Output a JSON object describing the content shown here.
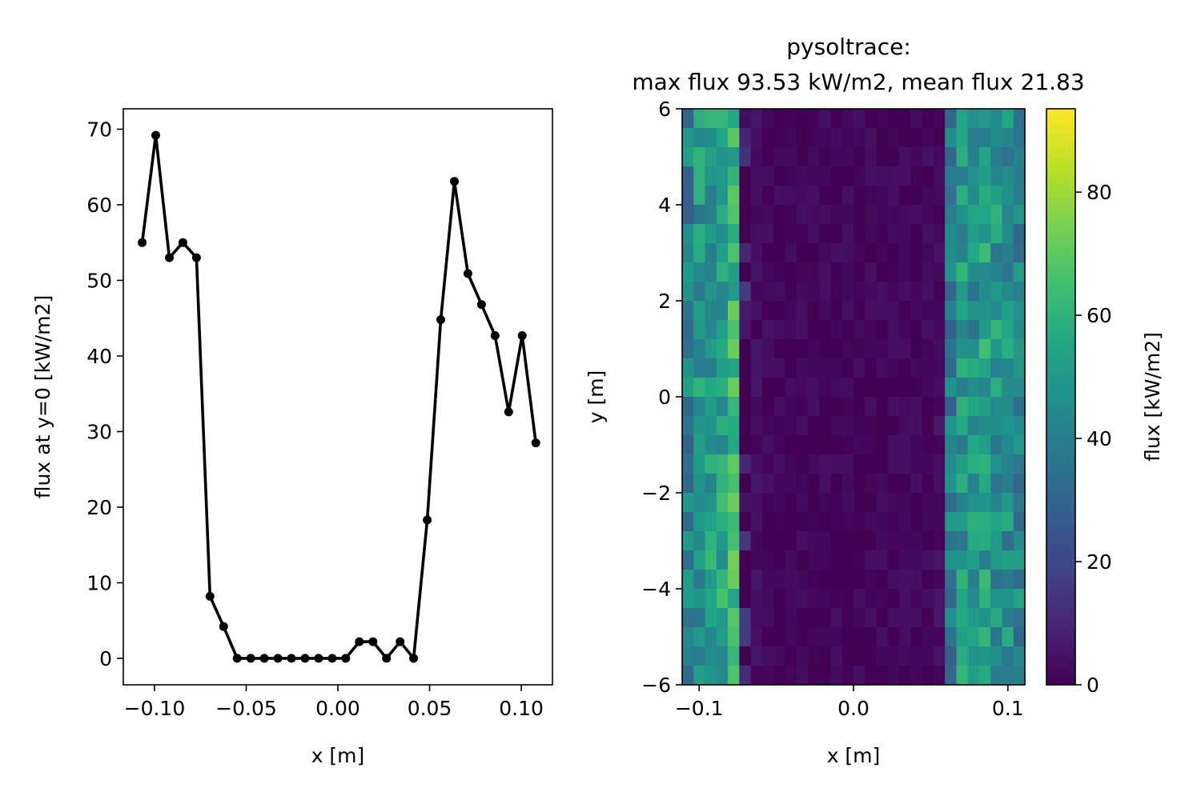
{
  "chart_data": [
    {
      "type": "line",
      "title": "",
      "xlabel": "x [m]",
      "ylabel": "flux at y=0 [kW/m2]",
      "xlim": [
        -0.117,
        0.117
      ],
      "ylim": [
        -3.5,
        72.7
      ],
      "xticks": [
        -0.1,
        -0.05,
        0.0,
        0.05,
        0.1
      ],
      "xtick_labels": [
        "−0.10",
        "−0.05",
        "0.00",
        "0.05",
        "0.10"
      ],
      "yticks": [
        0,
        10,
        20,
        30,
        40,
        50,
        60,
        70
      ],
      "ytick_labels": [
        "0",
        "10",
        "20",
        "30",
        "40",
        "50",
        "60",
        "70"
      ],
      "grid": false,
      "series": [
        {
          "color": "#000000",
          "marker": "circle",
          "x": [
            -0.1067,
            -0.0993,
            -0.0919,
            -0.0845,
            -0.0771,
            -0.0697,
            -0.0623,
            -0.0549,
            -0.0475,
            -0.0401,
            -0.0327,
            -0.0253,
            -0.0179,
            -0.0105,
            -0.0031,
            0.0043,
            0.0117,
            0.0191,
            0.0265,
            0.0339,
            0.0413,
            0.0487,
            0.0561,
            0.0635,
            0.0709,
            0.0783,
            0.0857,
            0.0931,
            0.1005,
            0.1079
          ],
          "y": [
            55.0,
            69.2,
            53.0,
            55.0,
            53.0,
            8.2,
            4.2,
            0.0,
            0.0,
            0.0,
            0.0,
            0.0,
            0.0,
            0.0,
            0.0,
            0.0,
            2.2,
            2.2,
            0.0,
            2.2,
            0.0,
            18.3,
            44.8,
            63.1,
            50.9,
            46.8,
            42.7,
            32.6,
            42.7,
            28.5
          ]
        }
      ]
    },
    {
      "type": "heatmap",
      "title": "pysoltrace:\nmax flux 93.53 kW/m2, mean flux 21.83",
      "title_lines": [
        "pysoltrace:",
        "max flux 93.53 kW/m2, mean flux 21.83"
      ],
      "xlabel": "x [m]",
      "ylabel": "y [m]",
      "xlim": [
        -0.111,
        0.111
      ],
      "ylim": [
        -6,
        6
      ],
      "xticks": [
        -0.1,
        0.0,
        0.1
      ],
      "xtick_labels": [
        "−0.1",
        "0.0",
        "0.1"
      ],
      "yticks": [
        -6,
        -4,
        -2,
        0,
        2,
        4,
        6
      ],
      "ytick_labels": [
        "−6",
        "−4",
        "−2",
        "0",
        "2",
        "4",
        "6"
      ],
      "colormap": "viridis",
      "color_range": [
        0,
        93.53
      ],
      "colorbar": {
        "label": "flux [kW/m2]",
        "ticks": [
          0,
          20,
          40,
          60,
          80
        ],
        "tick_labels": [
          "0",
          "20",
          "40",
          "60",
          "80"
        ]
      },
      "columns": 30,
      "rows": 30,
      "column_profile": [
        40,
        48,
        50,
        54,
        62,
        4,
        2,
        0.5,
        0,
        0,
        0,
        0,
        0,
        0,
        0,
        0,
        0,
        0,
        0,
        0,
        0,
        0.5,
        2,
        40,
        50,
        48,
        52,
        48,
        46,
        42
      ],
      "notes_visible": "values shown as colored cells; exact per-cell values not printed"
    }
  ]
}
